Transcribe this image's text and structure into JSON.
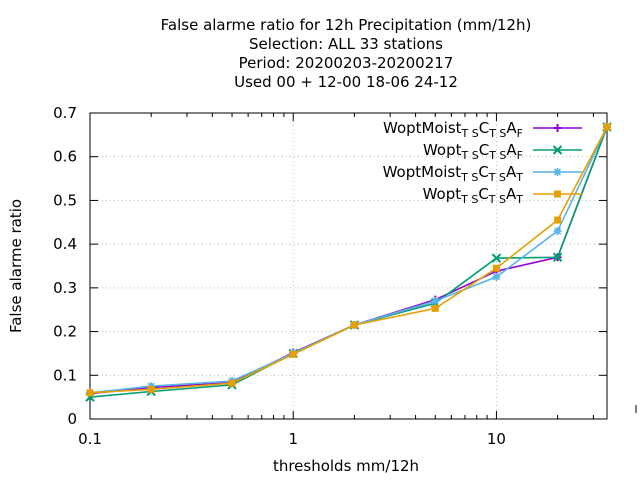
{
  "chart_data": {
    "type": "line",
    "title_lines": [
      "False alarme ratio  for 12h Precipitation (mm/12h)",
      "Selection: ALL     33 stations",
      "Period: 20200203-20200217",
      "Used  00 + 12-00 18-06 24-12"
    ],
    "xlabel": "thresholds mm/12h",
    "ylabel": "False alarme ratio",
    "x_scale": "log",
    "xlim": [
      0.1,
      35
    ],
    "ylim": [
      0,
      0.7
    ],
    "x_ticks": [
      {
        "value": 0.1,
        "label": "0.1"
      },
      {
        "value": 1,
        "label": "1"
      },
      {
        "value": 10,
        "label": "10"
      }
    ],
    "y_ticks": [
      {
        "value": 0,
        "label": "0"
      },
      {
        "value": 0.1,
        "label": "0.1"
      },
      {
        "value": 0.2,
        "label": "0.2"
      },
      {
        "value": 0.3,
        "label": "0.3"
      },
      {
        "value": 0.4,
        "label": "0.4"
      },
      {
        "value": 0.5,
        "label": "0.5"
      },
      {
        "value": 0.6,
        "label": "0.6"
      },
      {
        "value": 0.7,
        "label": "0.7"
      }
    ],
    "grid": true,
    "legend_position": "top-right",
    "x": [
      0.1,
      0.2,
      0.5,
      1,
      2,
      5,
      10,
      20,
      35
    ],
    "series": [
      {
        "name": "WoptMoist",
        "sub1": "T S",
        "mid": "C",
        "sub2": "T S",
        "end": "A",
        "sub3": "F",
        "color": "#9400d3",
        "marker": "plus",
        "values": [
          0.058,
          0.072,
          0.083,
          0.152,
          0.215,
          0.273,
          0.338,
          0.37,
          0.668
        ]
      },
      {
        "name": "Wopt",
        "sub1": "T S",
        "mid": "C",
        "sub2": "T S",
        "end": "A",
        "sub3": "F",
        "color": "#009e73",
        "marker": "x",
        "values": [
          0.05,
          0.063,
          0.078,
          0.15,
          0.215,
          0.265,
          0.368,
          0.37,
          0.668
        ]
      },
      {
        "name": "WoptMoist",
        "sub1": "T S",
        "mid": "C",
        "sub2": "T S",
        "end": "A",
        "sub3": "T",
        "color": "#56b4e9",
        "marker": "star",
        "values": [
          0.06,
          0.075,
          0.087,
          0.15,
          0.215,
          0.27,
          0.325,
          0.43,
          0.668
        ]
      },
      {
        "name": "Wopt",
        "sub1": "T S",
        "mid": "C",
        "sub2": "T S",
        "end": "A",
        "sub3": "T",
        "color": "#e69f00",
        "marker": "square",
        "values": [
          0.06,
          0.068,
          0.082,
          0.148,
          0.215,
          0.253,
          0.345,
          0.455,
          0.668
        ]
      }
    ]
  }
}
